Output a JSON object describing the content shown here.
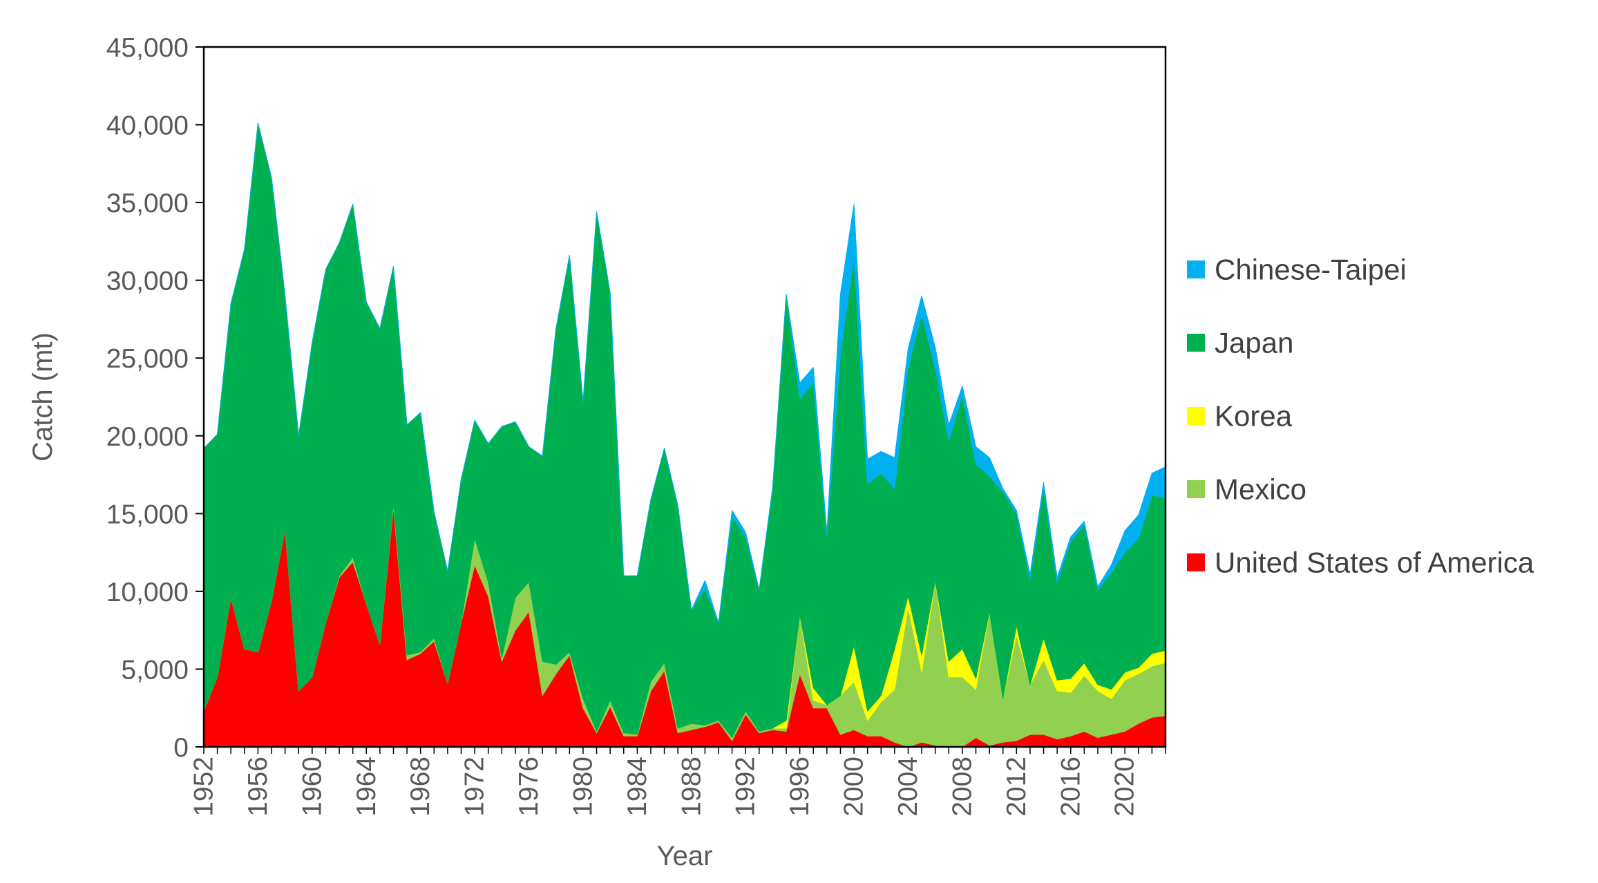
{
  "chart_data": {
    "type": "area",
    "stacked": true,
    "xlabel": "Year",
    "ylabel": "Catch (mt)",
    "ylim": [
      0,
      45000
    ],
    "xlim": [
      1952,
      2023
    ],
    "yticks": [
      0,
      5000,
      10000,
      15000,
      20000,
      25000,
      30000,
      35000,
      40000,
      45000
    ],
    "ytick_labels": [
      "0",
      "5,000",
      "10,000",
      "15,000",
      "20,000",
      "25,000",
      "30,000",
      "35,000",
      "40,000",
      "45,000"
    ],
    "xtick_labels": [
      "1952",
      "1956",
      "1960",
      "1964",
      "1968",
      "1972",
      "1976",
      "1980",
      "1984",
      "1988",
      "1992",
      "1996",
      "2000",
      "2004",
      "2008",
      "2012",
      "2016",
      "2020"
    ],
    "grid": false,
    "legend_position": "right",
    "years": [
      1952,
      1953,
      1954,
      1955,
      1956,
      1957,
      1958,
      1959,
      1960,
      1961,
      1962,
      1963,
      1964,
      1965,
      1966,
      1967,
      1968,
      1969,
      1970,
      1971,
      1972,
      1973,
      1974,
      1975,
      1976,
      1977,
      1978,
      1979,
      1980,
      1981,
      1982,
      1983,
      1984,
      1985,
      1986,
      1987,
      1988,
      1989,
      1990,
      1991,
      1992,
      1993,
      1994,
      1995,
      1996,
      1997,
      1998,
      1999,
      2000,
      2001,
      2002,
      2003,
      2004,
      2005,
      2006,
      2007,
      2008,
      2009,
      2010,
      2011,
      2012,
      2013,
      2014,
      2015,
      2016,
      2017,
      2018,
      2019,
      2020,
      2021,
      2022,
      2023
    ],
    "series": [
      {
        "name": "United States of America",
        "color": "#FF0000",
        "values": [
          2300,
          4500,
          9600,
          6300,
          6100,
          9400,
          14000,
          3600,
          4500,
          8000,
          10900,
          11900,
          9200,
          6600,
          15400,
          5600,
          6000,
          6800,
          4100,
          8000,
          11700,
          9700,
          5500,
          7500,
          8700,
          3300,
          4700,
          5900,
          2500,
          900,
          2600,
          700,
          700,
          3600,
          4900,
          900,
          1100,
          1300,
          1600,
          400,
          2100,
          900,
          1100,
          1000,
          4700,
          2500,
          2500,
          800,
          1100,
          700,
          700,
          300,
          0,
          300,
          100,
          0,
          0,
          600,
          100,
          300,
          400,
          800,
          800,
          500,
          700,
          1000,
          600,
          800,
          1000,
          1500,
          1900,
          2000
        ]
      },
      {
        "name": "Mexico",
        "color": "#92D050",
        "values": [
          0,
          0,
          0,
          0,
          0,
          0,
          0,
          0,
          0,
          0,
          100,
          300,
          0,
          0,
          200,
          300,
          100,
          200,
          0,
          0,
          1700,
          900,
          200,
          2100,
          1900,
          2200,
          600,
          200,
          600,
          100,
          400,
          200,
          100,
          600,
          500,
          300,
          400,
          100,
          100,
          200,
          200,
          100,
          100,
          200,
          3800,
          500,
          200,
          2500,
          3100,
          1000,
          2200,
          3400,
          9000,
          4500,
          10600,
          4500,
          4500,
          3100,
          8600,
          2800,
          6800,
          3200,
          4800,
          3100,
          2800,
          3600,
          3000,
          2300,
          3300,
          3200,
          3300,
          3400
        ]
      },
      {
        "name": "Korea",
        "color": "#FFFF00",
        "values": [
          0,
          0,
          0,
          0,
          0,
          0,
          0,
          0,
          0,
          0,
          0,
          0,
          0,
          0,
          0,
          0,
          0,
          0,
          0,
          0,
          0,
          0,
          0,
          0,
          0,
          0,
          0,
          0,
          0,
          0,
          0,
          0,
          0,
          0,
          0,
          0,
          0,
          0,
          0,
          0,
          0,
          0,
          0,
          500,
          0,
          800,
          0,
          0,
          2300,
          600,
          400,
          2600,
          700,
          1100,
          0,
          1000,
          1800,
          700,
          0,
          0,
          600,
          0,
          1400,
          700,
          900,
          800,
          400,
          600,
          500,
          400,
          800,
          800
        ]
      },
      {
        "name": "Japan",
        "color": "#00B050",
        "values": [
          16900,
          15600,
          18900,
          25700,
          34000,
          27200,
          15000,
          16400,
          21500,
          22700,
          21400,
          22700,
          19400,
          20300,
          15300,
          14800,
          15400,
          8100,
          7200,
          9200,
          7600,
          8900,
          14900,
          11300,
          8700,
          13200,
          21600,
          25500,
          19100,
          33400,
          26200,
          10100,
          10200,
          11700,
          13800,
          14300,
          7300,
          8800,
          6300,
          14200,
          11200,
          9100,
          15500,
          27400,
          13900,
          19600,
          10900,
          22000,
          25000,
          14600,
          14300,
          10300,
          14700,
          21900,
          13600,
          14200,
          16300,
          13800,
          8700,
          13300,
          7200,
          6800,
          9700,
          6300,
          8800,
          8900,
          6100,
          7500,
          7700,
          8300,
          10200,
          9800
        ]
      },
      {
        "name": "Chinese-Taipei",
        "color": "#00B0F0",
        "values": [
          0,
          0,
          0,
          0,
          0,
          0,
          0,
          0,
          0,
          0,
          0,
          0,
          0,
          0,
          0,
          0,
          0,
          0,
          0,
          0,
          0,
          0,
          0,
          0,
          0,
          0,
          0,
          0,
          0,
          0,
          0,
          0,
          0,
          0,
          0,
          0,
          0,
          500,
          0,
          400,
          300,
          0,
          0,
          0,
          1000,
          1000,
          200,
          3800,
          3400,
          1600,
          1400,
          2000,
          1200,
          1200,
          1400,
          1000,
          600,
          1100,
          1200,
          200,
          200,
          300,
          300,
          300,
          300,
          200,
          200,
          500,
          1400,
          1500,
          1400,
          2000
        ]
      }
    ]
  }
}
